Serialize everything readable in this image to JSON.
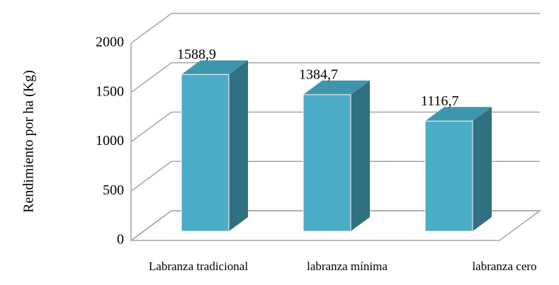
{
  "chart_data": {
    "type": "bar3d",
    "categories": [
      "Labranza tradicional",
      "labranza mínima",
      "labranza cero"
    ],
    "values": [
      1588.9,
      1384.7,
      1116.7
    ],
    "value_labels": [
      "1588,9",
      "1384,7",
      "1116,7"
    ],
    "color": "#4bacc6",
    "y_label": "Rendimiento por ha (Kg)",
    "ylim": [
      0,
      2000
    ],
    "yticks": [
      0,
      500,
      1000,
      1500,
      2000
    ],
    "grid": true
  }
}
